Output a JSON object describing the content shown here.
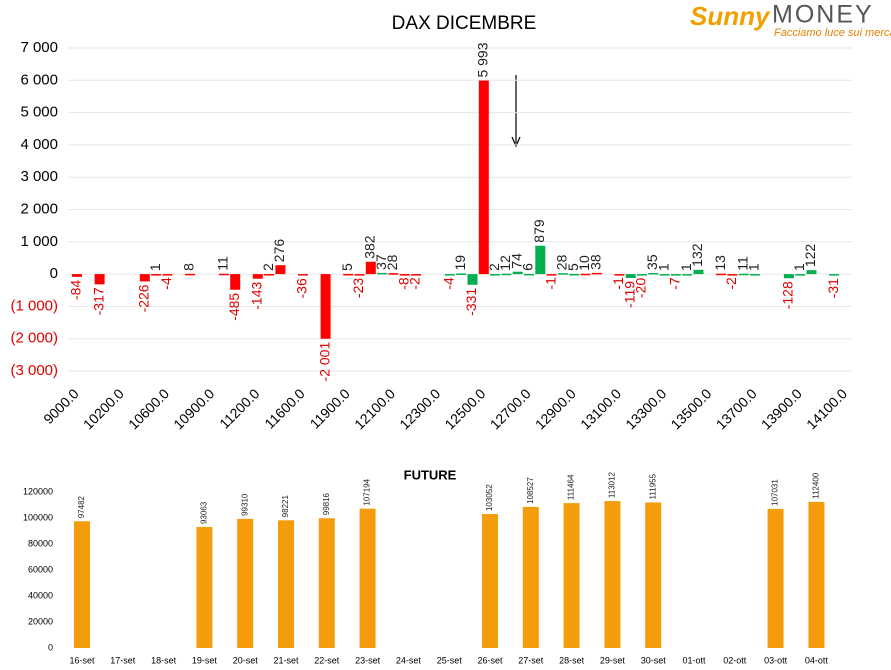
{
  "logo": {
    "brand": "Sunny",
    "name": "MONEY",
    "tagline": "Facciamo luce sui mercati"
  },
  "chart_data": [
    {
      "type": "bar",
      "title": "DAX DICEMBRE",
      "categories": [
        "9000.0",
        null,
        null,
        null,
        "10200.0",
        null,
        null,
        null,
        "10600.0",
        null,
        null,
        null,
        "10900.0",
        null,
        null,
        null,
        "11200.0",
        null,
        null,
        null,
        "11600.0",
        null,
        null,
        null,
        "11900.0",
        null,
        null,
        null,
        "12100.0",
        null,
        null,
        null,
        "12300.0",
        null,
        null,
        null,
        "12500.0",
        null,
        null,
        null,
        "12700.0",
        null,
        null,
        null,
        "12900.0",
        null,
        null,
        null,
        "13100.0",
        null,
        null,
        null,
        "13300.0",
        null,
        null,
        null,
        "13500.0",
        null,
        null,
        null,
        "13700.0",
        null,
        null,
        null,
        "13900.0",
        null,
        null,
        null,
        "14100.0"
      ],
      "values": [
        -84,
        null,
        -317,
        null,
        null,
        null,
        -226,
        1,
        -4,
        null,
        8,
        null,
        null,
        11,
        -485,
        null,
        -143,
        2,
        276,
        null,
        -36,
        null,
        -2001,
        null,
        5,
        -23,
        382,
        37,
        28,
        -8,
        -2,
        null,
        null,
        -4,
        19,
        -331,
        5993,
        2,
        12,
        74,
        6,
        879,
        -1,
        28,
        5,
        10,
        38,
        null,
        -1,
        -119,
        -20,
        35,
        1,
        -7,
        1,
        132,
        null,
        13,
        -2,
        11,
        1,
        null,
        null,
        -128,
        1,
        122,
        null,
        -31,
        null
      ],
      "value_labels": [
        "-84",
        null,
        "-317",
        null,
        null,
        null,
        "-226",
        "1",
        "-4",
        null,
        "8",
        null,
        null,
        "11",
        "-485",
        null,
        "-143",
        "2",
        "276",
        null,
        "-36",
        null,
        "-2 001",
        null,
        "5",
        "-23",
        "382",
        "37",
        "28",
        "-8",
        "-2",
        null,
        null,
        "-4",
        "19",
        "-331",
        "5 993",
        "2",
        "12",
        "74",
        "6",
        "879",
        "-1",
        "28",
        "5",
        "10",
        "38",
        null,
        "-1",
        "-119",
        "-20",
        "35",
        "1",
        "-7",
        "1",
        "132",
        null,
        "13",
        "-2",
        "11",
        "1",
        null,
        null,
        "-128",
        "1",
        "122",
        null,
        "-31",
        null
      ],
      "colors": [
        "#ff0000",
        null,
        "#ff0000",
        null,
        null,
        null,
        "#ff0000",
        "#ff0000",
        "#ff0000",
        null,
        "#ff0000",
        null,
        null,
        "#ff0000",
        "#ff0000",
        null,
        "#ff0000",
        "#ff0000",
        "#ff0000",
        null,
        "#ff0000",
        null,
        "#ff0000",
        null,
        "#ff0000",
        "#ff0000",
        "#ff0000",
        "#00b050",
        "#ff0000",
        "#ff0000",
        "#ff0000",
        null,
        null,
        "#00b050",
        "#00b050",
        "#00b050",
        "#ff0000",
        "#00b050",
        "#00b050",
        "#00b050",
        "#00b050",
        "#00b050",
        "#ff0000",
        "#00b050",
        "#00b050",
        "#ff0000",
        "#ff0000",
        null,
        "#ff0000",
        "#00b050",
        "#00b050",
        "#00b050",
        "#00b050",
        "#00b050",
        "#00b050",
        "#00b050",
        null,
        "#ff0000",
        "#ff0000",
        "#00b050",
        "#00b050",
        null,
        null,
        "#00b050",
        "#00b050",
        "#00b050",
        null,
        "#00b050",
        null
      ],
      "ylim": [
        -3000,
        7000
      ],
      "yticks": [
        {
          "value": -3000,
          "label": "(3 000)"
        },
        {
          "value": -2000,
          "label": "(2 000)"
        },
        {
          "value": -1000,
          "label": "(1 000)"
        },
        0,
        {
          "value": 1000,
          "label": "1 000"
        },
        {
          "value": 2000,
          "label": "2 000"
        },
        {
          "value": 3000,
          "label": "3 000"
        },
        {
          "value": 4000,
          "label": "4 000"
        },
        {
          "value": 5000,
          "label": "5 000"
        },
        {
          "value": 6000,
          "label": "6 000"
        },
        {
          "value": 7000,
          "label": "7 000"
        }
      ],
      "grid": true
    },
    {
      "type": "bar",
      "title": "FUTURE",
      "categories": [
        "16-set",
        "17-set",
        "18-set",
        "19-set",
        "20-set",
        "21-set",
        "22-set",
        "23-set",
        "24-set",
        "25-set",
        "26-set",
        "27-set",
        "28-set",
        "29-set",
        "30-set",
        "01-ott",
        "02-ott",
        "03-ott",
        "04-ott"
      ],
      "values": [
        97482,
        null,
        null,
        93063,
        99310,
        98221,
        99816,
        107194,
        null,
        null,
        103052,
        108527,
        111464,
        113012,
        111955,
        null,
        null,
        107031,
        112400
      ],
      "color": "#f59c0c",
      "ylim": [
        0,
        120000
      ],
      "yticks": [
        0,
        20000,
        40000,
        60000,
        80000,
        100000,
        120000
      ],
      "grid": false
    }
  ]
}
